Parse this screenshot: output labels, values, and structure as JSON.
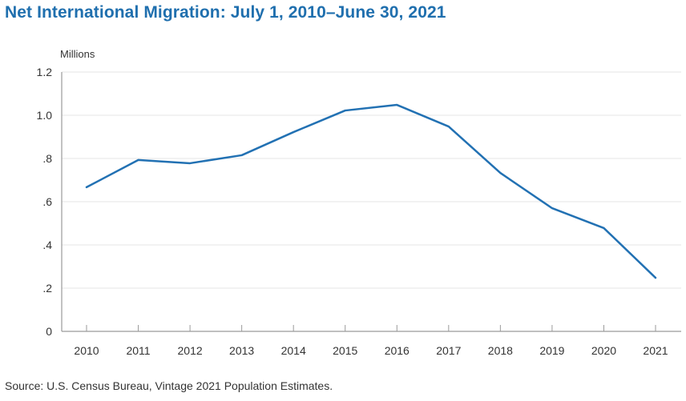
{
  "chart_data": {
    "type": "line",
    "title": "Net International Migration: July 1, 2010–June 30, 2021",
    "ylabel": "Millions",
    "xlabel": "",
    "source": "Source: U.S. Census Bureau, Vintage 2021 Population Estimates.",
    "x": [
      "2010",
      "2011",
      "2012",
      "2013",
      "2014",
      "2015",
      "2016",
      "2017",
      "2018",
      "2019",
      "2020",
      "2021"
    ],
    "series": [
      {
        "name": "Net International Migration",
        "color": "#2271b3",
        "values": [
          0.667,
          0.793,
          0.778,
          0.815,
          0.922,
          1.022,
          1.048,
          0.948,
          0.733,
          0.57,
          0.478,
          0.248
        ]
      }
    ],
    "ylim": [
      0,
      1.2
    ],
    "yticks": [
      0,
      0.2,
      0.4,
      0.6,
      0.8,
      1.0,
      1.2
    ],
    "ytick_labels": [
      "0",
      ".2",
      ".4",
      ".6",
      ".8",
      "1.0",
      "1.2"
    ],
    "grid": true,
    "legend": "none"
  },
  "colors": {
    "title": "#1f6fae",
    "line": "#2271b3",
    "grid": "#e6e6e6",
    "axis": "#9a9a9a"
  }
}
